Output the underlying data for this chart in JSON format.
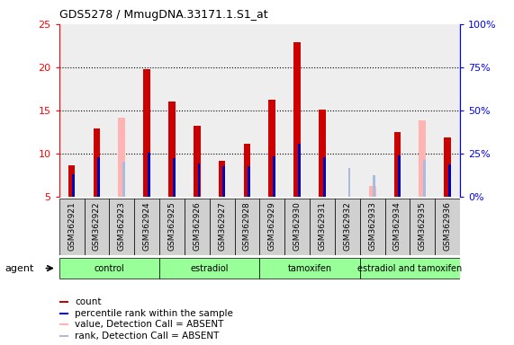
{
  "title": "GDS5278 / MmugDNA.33171.1.S1_at",
  "samples": [
    "GSM362921",
    "GSM362922",
    "GSM362923",
    "GSM362924",
    "GSM362925",
    "GSM362926",
    "GSM362927",
    "GSM362928",
    "GSM362929",
    "GSM362930",
    "GSM362931",
    "GSM362932",
    "GSM362933",
    "GSM362934",
    "GSM362935",
    "GSM362936"
  ],
  "group_labels": [
    "control",
    "estradiol",
    "tamoxifen",
    "estradiol and tamoxifen"
  ],
  "group_ranges": [
    [
      0,
      3
    ],
    [
      4,
      7
    ],
    [
      8,
      11
    ],
    [
      12,
      15
    ]
  ],
  "group_color": "#99ff99",
  "count_values": [
    8.6,
    12.9,
    null,
    19.8,
    16.0,
    13.2,
    9.2,
    11.1,
    16.2,
    22.9,
    15.1,
    null,
    null,
    12.5,
    null,
    11.9
  ],
  "count_absent_values": [
    null,
    null,
    14.2,
    null,
    null,
    null,
    null,
    null,
    null,
    null,
    null,
    null,
    6.2,
    null,
    13.8,
    null
  ],
  "rank_values": [
    7.6,
    9.6,
    null,
    10.1,
    9.5,
    8.8,
    8.5,
    8.5,
    9.7,
    11.1,
    9.6,
    null,
    null,
    9.8,
    null,
    8.7
  ],
  "rank_absent_values": [
    null,
    null,
    9.1,
    null,
    null,
    null,
    null,
    null,
    null,
    null,
    null,
    8.3,
    7.5,
    null,
    9.3,
    null
  ],
  "ylim": [
    5,
    25
  ],
  "yticks_left": [
    5,
    10,
    15,
    20,
    25
  ],
  "yticks_right_pct": [
    "0%",
    "25%",
    "50%",
    "75%",
    "100%"
  ],
  "count_color": "#cc0000",
  "count_absent_color": "#ffb3b3",
  "rank_color": "#0000bb",
  "rank_absent_color": "#aabbdd",
  "col_bg_color": "#d0d0d0",
  "white": "#ffffff"
}
